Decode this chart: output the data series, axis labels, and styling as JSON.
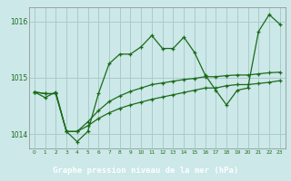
{
  "xlabel": "Graphe pression niveau de la mer (hPa)",
  "background_color": "#cce8e8",
  "plot_bg_color": "#cce8e8",
  "grid_color": "#aacccc",
  "line_color": "#1a6b1a",
  "label_bg_color": "#336633",
  "label_text_color": "#ffffff",
  "ylim": [
    1013.75,
    1016.25
  ],
  "xlim": [
    -0.5,
    23.5
  ],
  "yticks": [
    1014,
    1015,
    1016
  ],
  "xticks": [
    0,
    1,
    2,
    3,
    4,
    5,
    6,
    7,
    8,
    9,
    10,
    11,
    12,
    13,
    14,
    15,
    16,
    17,
    18,
    19,
    20,
    21,
    22,
    23
  ],
  "series1": [
    1014.75,
    1014.65,
    1014.75,
    1014.05,
    1013.87,
    1014.05,
    1014.72,
    1015.25,
    1015.42,
    1015.42,
    1015.55,
    1015.75,
    1015.52,
    1015.52,
    1015.72,
    1015.45,
    1015.05,
    1014.78,
    1014.52,
    1014.78,
    1014.82,
    1015.82,
    1016.12,
    1015.95
  ],
  "series2": [
    1014.75,
    1014.72,
    1014.72,
    1014.05,
    1014.05,
    1014.15,
    1014.28,
    1014.38,
    1014.46,
    1014.52,
    1014.57,
    1014.62,
    1014.66,
    1014.7,
    1014.74,
    1014.78,
    1014.82,
    1014.82,
    1014.86,
    1014.88,
    1014.88,
    1014.9,
    1014.92,
    1014.95
  ],
  "series3": [
    1014.75,
    1014.72,
    1014.72,
    1014.05,
    1014.05,
    1014.22,
    1014.42,
    1014.58,
    1014.68,
    1014.76,
    1014.82,
    1014.88,
    1014.91,
    1014.94,
    1014.97,
    1014.99,
    1015.02,
    1015.02,
    1015.04,
    1015.05,
    1015.05,
    1015.07,
    1015.09,
    1015.1
  ]
}
